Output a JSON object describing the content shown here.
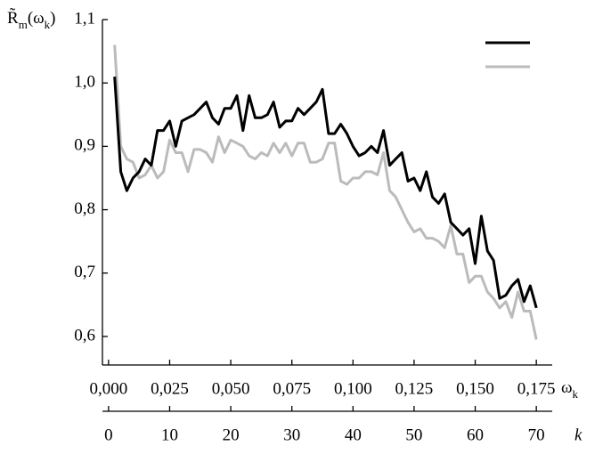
{
  "chart_data": {
    "type": "line",
    "ylabel": "R̃m(ωk)",
    "xlabel": "ωk",
    "x2label": "k",
    "x": [
      0.0025,
      0.005,
      0.0075,
      0.01,
      0.0125,
      0.015,
      0.0175,
      0.02,
      0.0225,
      0.025,
      0.0275,
      0.03,
      0.0325,
      0.035,
      0.0375,
      0.04,
      0.0425,
      0.045,
      0.0475,
      0.05,
      0.0525,
      0.055,
      0.0575,
      0.06,
      0.0625,
      0.065,
      0.0675,
      0.07,
      0.0725,
      0.075,
      0.0775,
      0.08,
      0.0825,
      0.085,
      0.0875,
      0.09,
      0.0925,
      0.095,
      0.0975,
      0.1,
      0.1025,
      0.105,
      0.1075,
      0.11,
      0.1125,
      0.115,
      0.1175,
      0.12,
      0.1225,
      0.125,
      0.1275,
      0.13,
      0.1325,
      0.135,
      0.1375,
      0.14,
      0.1425,
      0.145,
      0.1475,
      0.15,
      0.1525,
      0.155,
      0.1575,
      0.16,
      0.1625,
      0.165,
      0.1675,
      0.17,
      0.1725,
      0.175
    ],
    "series": [
      {
        "color": "#000000",
        "values": [
          1.01,
          0.86,
          0.83,
          0.85,
          0.86,
          0.88,
          0.87,
          0.925,
          0.925,
          0.94,
          0.9,
          0.94,
          0.945,
          0.95,
          0.96,
          0.97,
          0.945,
          0.935,
          0.96,
          0.96,
          0.98,
          0.925,
          0.98,
          0.945,
          0.945,
          0.95,
          0.97,
          0.93,
          0.94,
          0.94,
          0.96,
          0.95,
          0.96,
          0.97,
          0.99,
          0.92,
          0.92,
          0.935,
          0.92,
          0.9,
          0.885,
          0.89,
          0.9,
          0.89,
          0.925,
          0.87,
          0.88,
          0.89,
          0.845,
          0.85,
          0.83,
          0.86,
          0.82,
          0.81,
          0.825,
          0.78,
          0.77,
          0.76,
          0.77,
          0.715,
          0.79,
          0.735,
          0.72,
          0.66,
          0.665,
          0.68,
          0.69,
          0.655,
          0.68,
          0.645
        ]
      },
      {
        "color": "#bbbbbb",
        "values": [
          1.06,
          0.9,
          0.88,
          0.875,
          0.85,
          0.855,
          0.87,
          0.85,
          0.86,
          0.91,
          0.89,
          0.89,
          0.86,
          0.895,
          0.895,
          0.89,
          0.875,
          0.915,
          0.89,
          0.91,
          0.905,
          0.9,
          0.885,
          0.88,
          0.89,
          0.885,
          0.905,
          0.89,
          0.905,
          0.885,
          0.905,
          0.905,
          0.875,
          0.875,
          0.88,
          0.905,
          0.905,
          0.845,
          0.84,
          0.85,
          0.85,
          0.86,
          0.86,
          0.855,
          0.89,
          0.83,
          0.82,
          0.8,
          0.78,
          0.765,
          0.77,
          0.755,
          0.755,
          0.75,
          0.74,
          0.775,
          0.73,
          0.73,
          0.685,
          0.695,
          0.695,
          0.67,
          0.66,
          0.645,
          0.655,
          0.63,
          0.67,
          0.64,
          0.64,
          0.595
        ]
      }
    ],
    "xlim": [
      -0.0025,
      0.1815
    ],
    "xticks": [
      {
        "value": 0,
        "label": "0,000"
      },
      {
        "value": 0.025,
        "label": "0,025"
      },
      {
        "value": 0.05,
        "label": "0,050"
      },
      {
        "value": 0.075,
        "label": "0,075"
      },
      {
        "value": 0.1,
        "label": "0,100"
      },
      {
        "value": 0.125,
        "label": "0,125"
      },
      {
        "value": 0.15,
        "label": "0,150"
      },
      {
        "value": 0.175,
        "label": "0,175"
      }
    ],
    "x2lim": [
      -1,
      72.6
    ],
    "x2ticks": [
      0,
      10,
      20,
      30,
      40,
      50,
      60,
      70
    ],
    "ylim": [
      0.555,
      1.1
    ],
    "yticks": [
      {
        "value": 0.6,
        "label": "0,6"
      },
      {
        "value": 0.7,
        "label": "0,7"
      },
      {
        "value": 0.8,
        "label": "0,8"
      },
      {
        "value": 0.9,
        "label": "0,9"
      },
      {
        "value": 1.0,
        "label": "1,0"
      },
      {
        "value": 1.1,
        "label": "1,1"
      }
    ]
  }
}
